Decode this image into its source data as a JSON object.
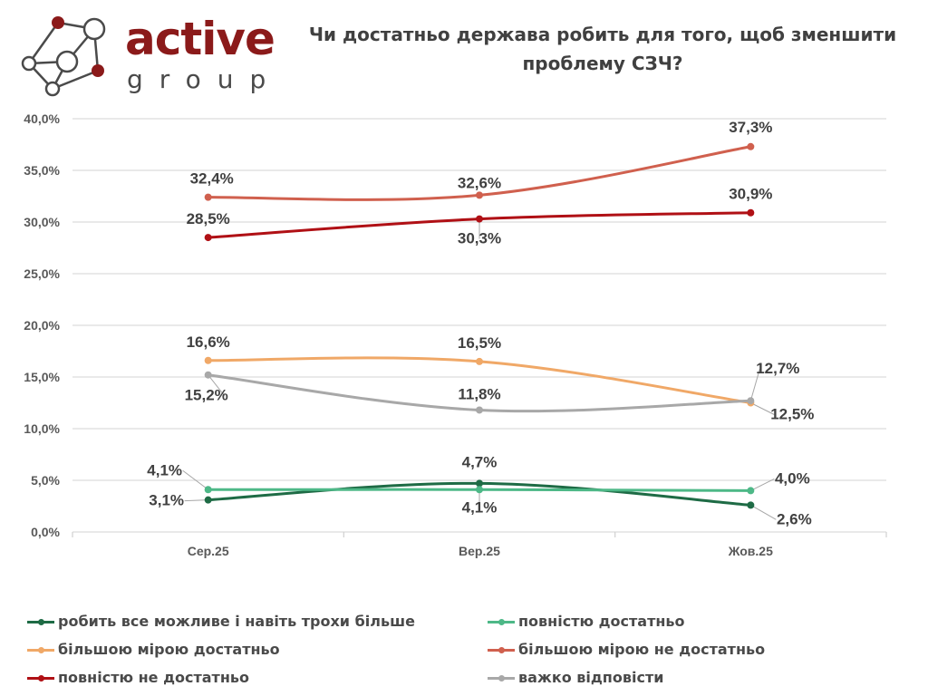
{
  "header": {
    "logo": {
      "main": "active",
      "sub": "group",
      "icon": "network-nodes-icon"
    },
    "title": "Чи достатньо держава робить для того, щоб зменшити проблему СЗЧ?"
  },
  "chart_data": {
    "type": "line",
    "title": "Чи достатньо держава робить для того, щоб зменшити проблему СЗЧ?",
    "xlabel": "",
    "ylabel": "",
    "categories": [
      "Сер.25",
      "Вер.25",
      "Жов.25"
    ],
    "ylim": [
      0,
      40
    ],
    "yticks": [
      0,
      5,
      10,
      15,
      20,
      25,
      30,
      35,
      40
    ],
    "ytick_labels": [
      "0,0%",
      "5,0%",
      "10,0%",
      "15,0%",
      "20,0%",
      "25,0%",
      "30,0%",
      "35,0%",
      "40,0%"
    ],
    "grid": true,
    "legend_position": "bottom",
    "smooth": true,
    "series": [
      {
        "name": "робить все можливе і навіть  трохи більше",
        "color": "#1e6b45",
        "values": [
          3.1,
          4.7,
          2.6
        ],
        "labels": [
          "3,1%",
          "4,7%",
          "2,6%"
        ]
      },
      {
        "name": "повністю достатньо",
        "color": "#4db887",
        "values": [
          4.1,
          4.1,
          4.0
        ],
        "labels": [
          "4,1%",
          "4,1%",
          "4,0%"
        ]
      },
      {
        "name": "більшою мірою достатньо",
        "color": "#f0a867",
        "values": [
          16.6,
          16.5,
          12.5
        ],
        "labels": [
          "16,6%",
          "16,5%",
          "12,5%"
        ]
      },
      {
        "name": "більшою мірою не достатньо",
        "color": "#d0604e",
        "values": [
          32.4,
          32.6,
          37.3
        ],
        "labels": [
          "32,4%",
          "32,6%",
          "37,3%"
        ]
      },
      {
        "name": "повністю не достатньо",
        "color": "#b01015",
        "values": [
          28.5,
          30.3,
          30.9
        ],
        "labels": [
          "28,5%",
          "30,3%",
          "30,9%"
        ]
      },
      {
        "name": "важко відповісти",
        "color": "#a8a8a8",
        "values": [
          15.2,
          11.8,
          12.7
        ],
        "labels": [
          "15,2%",
          "11,8%",
          "12,7%"
        ]
      }
    ]
  }
}
